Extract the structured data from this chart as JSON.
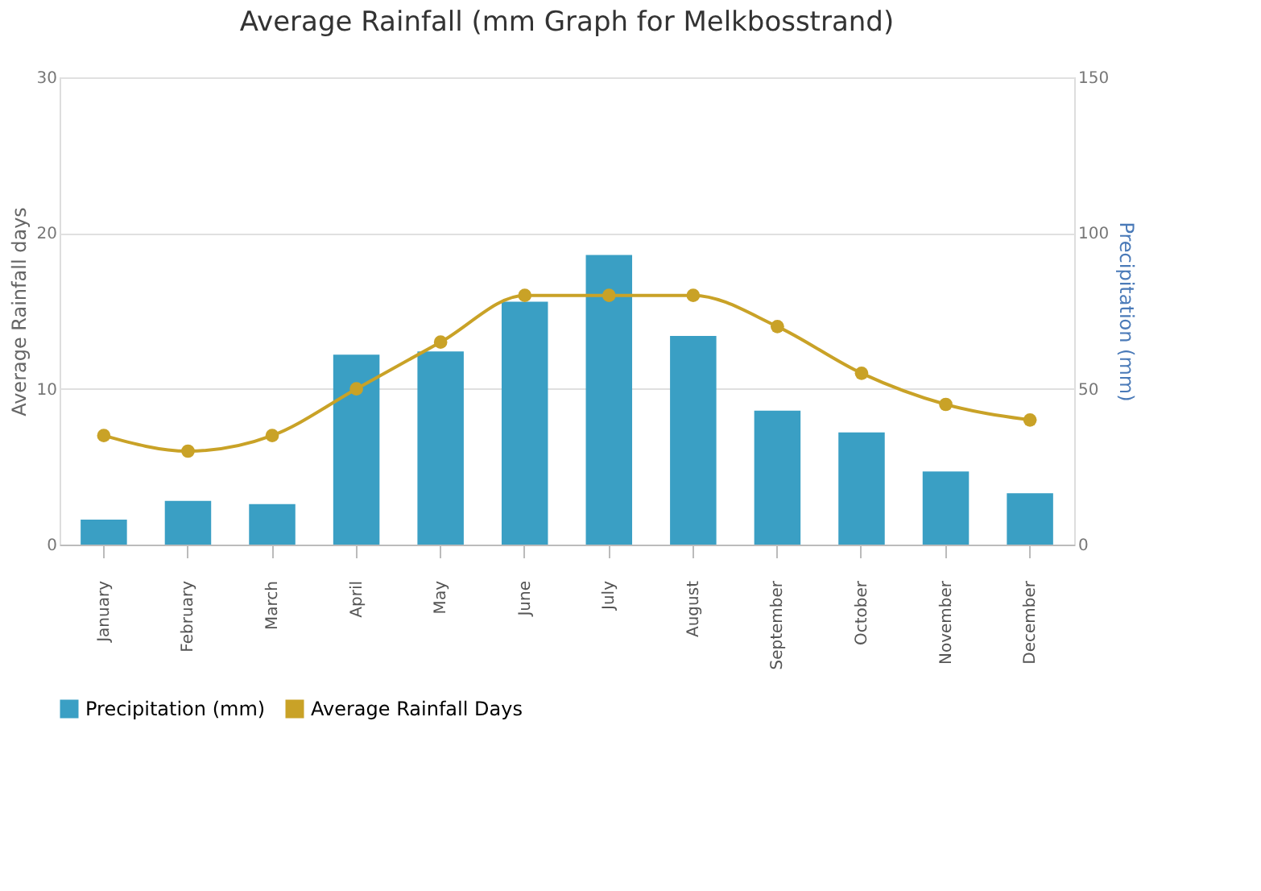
{
  "chart_data": {
    "type": "bar",
    "title": "Average Rainfall (mm Graph for Melkbosstrand)",
    "ylabel": "Average Rainfall days",
    "y2label": "Precipitation (mm)",
    "categories": [
      "January",
      "February",
      "March",
      "April",
      "May",
      "June",
      "July",
      "August",
      "September",
      "October",
      "November",
      "December"
    ],
    "series": [
      {
        "name": "Precipitation (mm)",
        "axis": "y2",
        "color": "#3a9fc4",
        "values": [
          8,
          14,
          13,
          61,
          62,
          78,
          93,
          67,
          43,
          36,
          23.5,
          16.5
        ]
      },
      {
        "name": "Average Rainfall Days",
        "type": "line",
        "axis": "y",
        "color": "#c9a227",
        "marker": "circle",
        "values": [
          7,
          6,
          7,
          10,
          13,
          16,
          16,
          16,
          14,
          11,
          9,
          8
        ]
      }
    ],
    "ylim": [
      0,
      30
    ],
    "yticks": [
      0,
      10,
      20,
      30
    ],
    "y2lim": [
      0,
      150
    ],
    "y2ticks": [
      0,
      50,
      100,
      150
    ],
    "grid": "y",
    "legend": "bottom"
  }
}
